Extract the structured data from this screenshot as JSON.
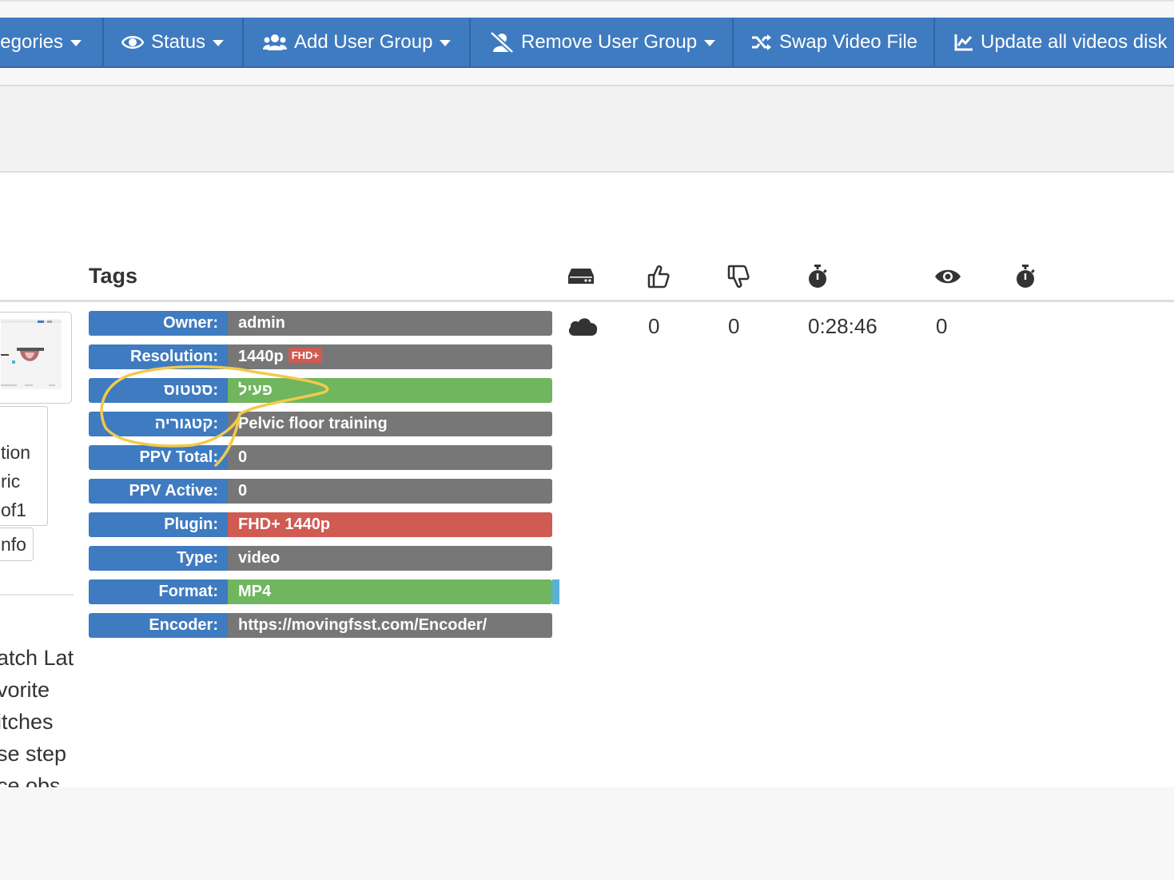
{
  "toolbar": {
    "categories_label": "egories",
    "status_label": "Status",
    "add_group_label": "Add User Group",
    "remove_group_label": "Remove User Group",
    "swap_label": "Swap Video File",
    "update_label": "Update all videos disk"
  },
  "table": {
    "tags_header": "Tags",
    "column_icons": [
      "hard-drive-icon",
      "thumbs-up-icon",
      "thumbs-down-icon",
      "stopwatch-icon",
      "eye-icon",
      "stopwatch-icon"
    ]
  },
  "tags": {
    "owner": {
      "label": "Owner:",
      "value": "admin"
    },
    "resolution": {
      "label": "Resolution:",
      "value": "1440p",
      "badge": "FHD+"
    },
    "status": {
      "label": "סטטוס:",
      "value": "פעיל"
    },
    "category": {
      "label": "קטגוריה:",
      "value": "Pelvic floor training"
    },
    "ppv_total": {
      "label": "PPV Total:",
      "value": "0"
    },
    "ppv_active": {
      "label": "PPV Active:",
      "value": "0"
    },
    "plugin": {
      "label": "Plugin:",
      "value": "FHD+ 1440p"
    },
    "type": {
      "label": "Type:",
      "value": "video"
    },
    "format": {
      "label": "Format:",
      "value": "MP4"
    },
    "encoder": {
      "label": "Encoder:",
      "value": "https://movingfsst.com/Encoder/"
    }
  },
  "stats": {
    "storage_icon": "cloud-icon",
    "likes": "0",
    "dislikes": "0",
    "duration": "0:28:46",
    "views": "0"
  },
  "left_panel": {
    "desc_lines": [
      "tion",
      "ric",
      "of1"
    ],
    "info_button": "nfo",
    "menu_items": [
      "atch Lat",
      "vorite",
      "itches",
      "se step",
      "ce obs"
    ]
  },
  "colors": {
    "toolbar_blue": "#3f7bc0",
    "label_blue": "#3f7bc0",
    "value_gray": "#777777",
    "value_green": "#6fb65e",
    "value_red": "#cf5b52",
    "annotation_yellow": "#f2c94c"
  }
}
